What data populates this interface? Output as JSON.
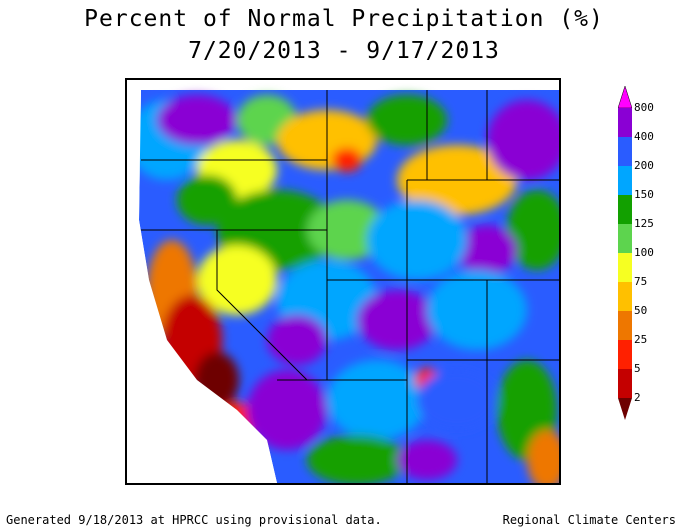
{
  "title_line1": "Percent of Normal Precipitation (%)",
  "title_line2": "7/20/2013 - 9/17/2013",
  "legend": {
    "ticks": [
      "800",
      "400",
      "200",
      "150",
      "125",
      "100",
      "75",
      "50",
      "25",
      "5",
      "2"
    ],
    "colors": [
      "#ff00ff",
      "#8a00d4",
      "#2a5cff",
      "#00a6ff",
      "#12a000",
      "#5dd44e",
      "#f6ff22",
      "#ffc000",
      "#ee7700",
      "#ff2000",
      "#c40000",
      "#6e0000"
    ]
  },
  "footer_left": "Generated 9/18/2013 at HPRCC using provisional data.",
  "footer_right": "Regional Climate Centers"
}
